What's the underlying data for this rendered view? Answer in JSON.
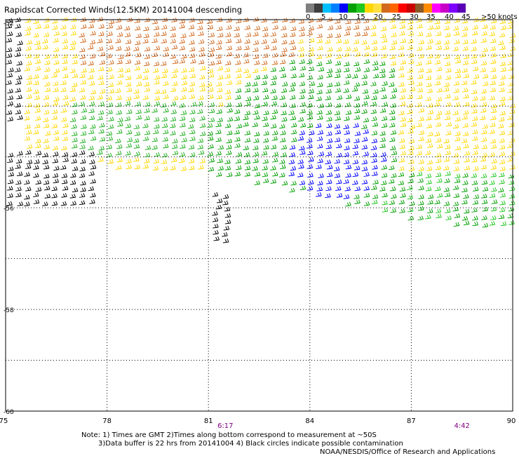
{
  "header": {
    "title": "Rapidscat Corrected Winds(12.5KM) 20141004 descending"
  },
  "legend": {
    "colors": [
      "#7f7f7f",
      "#3f3f3f",
      "#00bfff",
      "#0080ff",
      "#0000ff",
      "#00a000",
      "#20c820",
      "#ffd700",
      "#ffe040",
      "#d2691e",
      "#ff6400",
      "#ff0000",
      "#c80000",
      "#8b5a2b",
      "#ff8c00",
      "#ff00ff",
      "#c800c8",
      "#7f00ff",
      "#5a00b4"
    ],
    "ticks": [
      "0",
      "5",
      "10",
      "15",
      "20",
      "25",
      "30",
      "35",
      "40",
      "45",
      ">50 knots"
    ],
    "tick_offsets": [
      0,
      22,
      47,
      72,
      97,
      123,
      148,
      172,
      198,
      222,
      250
    ]
  },
  "chart_data": {
    "type": "scatter",
    "title": "Rapidscat Corrected Winds(12.5KM) 20141004 descending",
    "xlabel": "",
    "ylabel": "",
    "xlim": [
      75,
      90
    ],
    "ylim": [
      -60,
      -52
    ],
    "x_ticks": [
      "75",
      "78",
      "81",
      "84",
      "87",
      "90"
    ],
    "y_ticks": [
      "-56",
      "-58",
      "-60"
    ],
    "top_latitude_label": "-52",
    "grid": true,
    "time_labels": [
      {
        "text": "6:17",
        "x": 81.5
      },
      {
        "text": "4:42",
        "x": 88.5
      }
    ],
    "wind_speed_units": "knots",
    "speed_scale": [
      0,
      5,
      10,
      15,
      20,
      25,
      30,
      35,
      40,
      45,
      50
    ]
  },
  "footer": {
    "line1": "Note: 1) Times are GMT 2)Times along bottom correspond to measurement at ~50S",
    "line2": "3)Data buffer is 22 hrs from 20141004 4) Black circles indicate possible contamination",
    "line3": "NOAA/NESDIS/Office of Research and Applications"
  }
}
